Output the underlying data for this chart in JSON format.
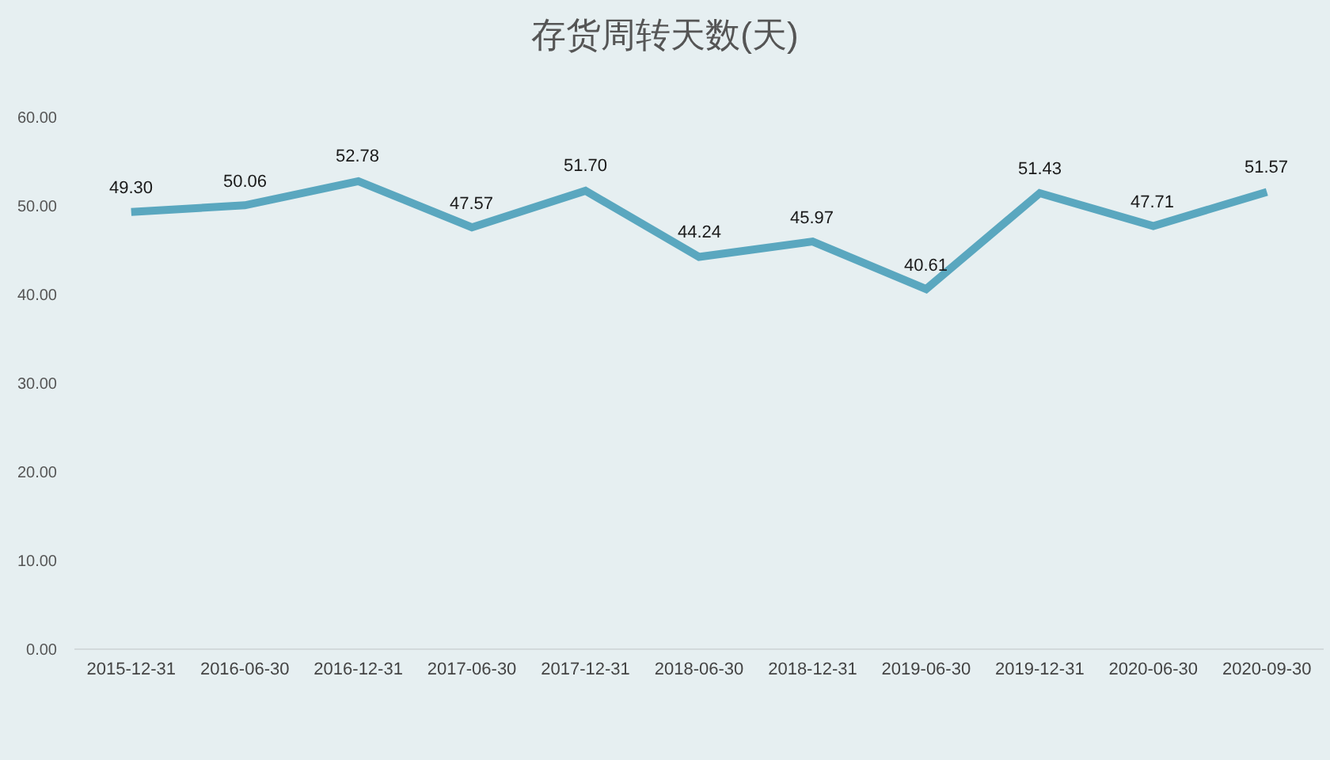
{
  "chart_data": {
    "type": "line",
    "title": "存货周转天数(天)",
    "categories": [
      "2015-12-31",
      "2016-06-30",
      "2016-12-31",
      "2017-06-30",
      "2017-12-31",
      "2018-06-30",
      "2018-12-31",
      "2019-06-30",
      "2019-12-31",
      "2020-06-30",
      "2020-09-30"
    ],
    "series": [
      {
        "color": "#5aa7bf",
        "values": [
          49.3,
          50.06,
          52.78,
          47.57,
          51.7,
          44.24,
          45.97,
          40.61,
          51.43,
          47.71,
          51.57
        ],
        "value_labels": [
          "49.30",
          "50.06",
          "52.78",
          "47.57",
          "51.70",
          "44.24",
          "45.97",
          "40.61",
          "51.43",
          "47.71",
          "51.57"
        ]
      }
    ],
    "ylim": [
      0,
      60
    ],
    "yticks": [
      {
        "value": 0,
        "label": "0.00"
      },
      {
        "value": 10,
        "label": "10.00"
      },
      {
        "value": 20,
        "label": "20.00"
      },
      {
        "value": 30,
        "label": "30.00"
      },
      {
        "value": 40,
        "label": "40.00"
      },
      {
        "value": 50,
        "label": "50.00"
      },
      {
        "value": 60,
        "label": "60.00"
      }
    ],
    "grid": false,
    "marker": "none",
    "line_style": "solid"
  }
}
